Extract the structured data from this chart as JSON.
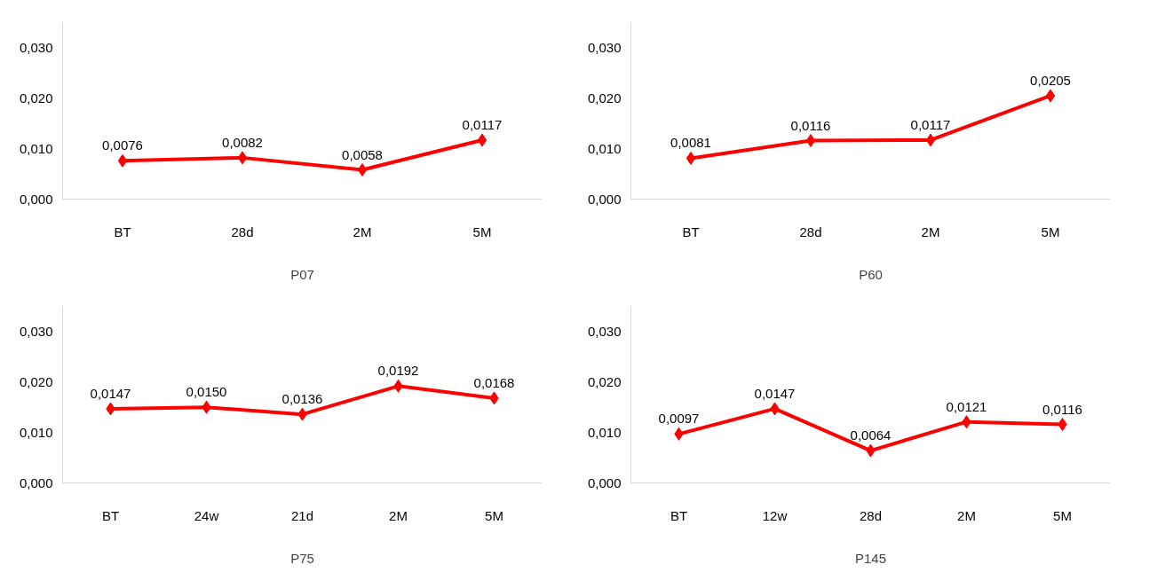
{
  "chart_data": [
    {
      "type": "line",
      "categories": [
        "BT",
        "28d",
        "2M",
        "5M"
      ],
      "xlabel": "P07",
      "series": [
        {
          "color": "#ff0000",
          "values": [
            0.0076,
            0.0082,
            0.0058,
            0.0117
          ],
          "value_labels": [
            "0,0076",
            "0,0082",
            "0,0058",
            "0,0117"
          ]
        }
      ],
      "ylim": [
        0,
        0.035
      ],
      "yticks": [
        {
          "value": 0,
          "label": "0,000"
        },
        {
          "value": 0.01,
          "label": "0,010"
        },
        {
          "value": 0.02,
          "label": "0,020"
        },
        {
          "value": 0.03,
          "label": "0,030"
        }
      ],
      "marker": "diamond",
      "line_style": "solid",
      "grid": false
    },
    {
      "type": "line",
      "categories": [
        "BT",
        "28d",
        "2M",
        "5M"
      ],
      "xlabel": "P60",
      "series": [
        {
          "color": "#ff0000",
          "values": [
            0.0081,
            0.0116,
            0.0117,
            0.0205
          ],
          "value_labels": [
            "0,0081",
            "0,0116",
            "0,0117",
            "0,0205"
          ]
        }
      ],
      "ylim": [
        0,
        0.035
      ],
      "yticks": [
        {
          "value": 0,
          "label": "0,000"
        },
        {
          "value": 0.01,
          "label": "0,010"
        },
        {
          "value": 0.02,
          "label": "0,020"
        },
        {
          "value": 0.03,
          "label": "0,030"
        }
      ],
      "marker": "diamond",
      "line_style": "solid",
      "grid": false
    },
    {
      "type": "line",
      "categories": [
        "BT",
        "24w",
        "21d",
        "2M",
        "5M"
      ],
      "xlabel": "P75",
      "series": [
        {
          "color": "#ff0000",
          "values": [
            0.0147,
            0.015,
            0.0136,
            0.0192,
            0.0168
          ],
          "value_labels": [
            "0,0147",
            "0,0150",
            "0,0136",
            "0,0192",
            "0,0168"
          ]
        }
      ],
      "ylim": [
        0,
        0.035
      ],
      "yticks": [
        {
          "value": 0,
          "label": "0,000"
        },
        {
          "value": 0.01,
          "label": "0,010"
        },
        {
          "value": 0.02,
          "label": "0,020"
        },
        {
          "value": 0.03,
          "label": "0,030"
        }
      ],
      "marker": "diamond",
      "line_style": "solid",
      "grid": false
    },
    {
      "type": "line",
      "categories": [
        "BT",
        "12w",
        "28d",
        "2M",
        "5M"
      ],
      "xlabel": "P145",
      "series": [
        {
          "color": "#ff0000",
          "values": [
            0.0097,
            0.0147,
            0.0064,
            0.0121,
            0.0116
          ],
          "value_labels": [
            "0,0097",
            "0,0147",
            "0,0064",
            "0,0121",
            "0,0116"
          ]
        }
      ],
      "ylim": [
        0,
        0.035
      ],
      "yticks": [
        {
          "value": 0,
          "label": "0,000"
        },
        {
          "value": 0.01,
          "label": "0,010"
        },
        {
          "value": 0.02,
          "label": "0,020"
        },
        {
          "value": 0.03,
          "label": "0,030"
        }
      ],
      "marker": "diamond",
      "line_style": "solid",
      "grid": false
    }
  ]
}
